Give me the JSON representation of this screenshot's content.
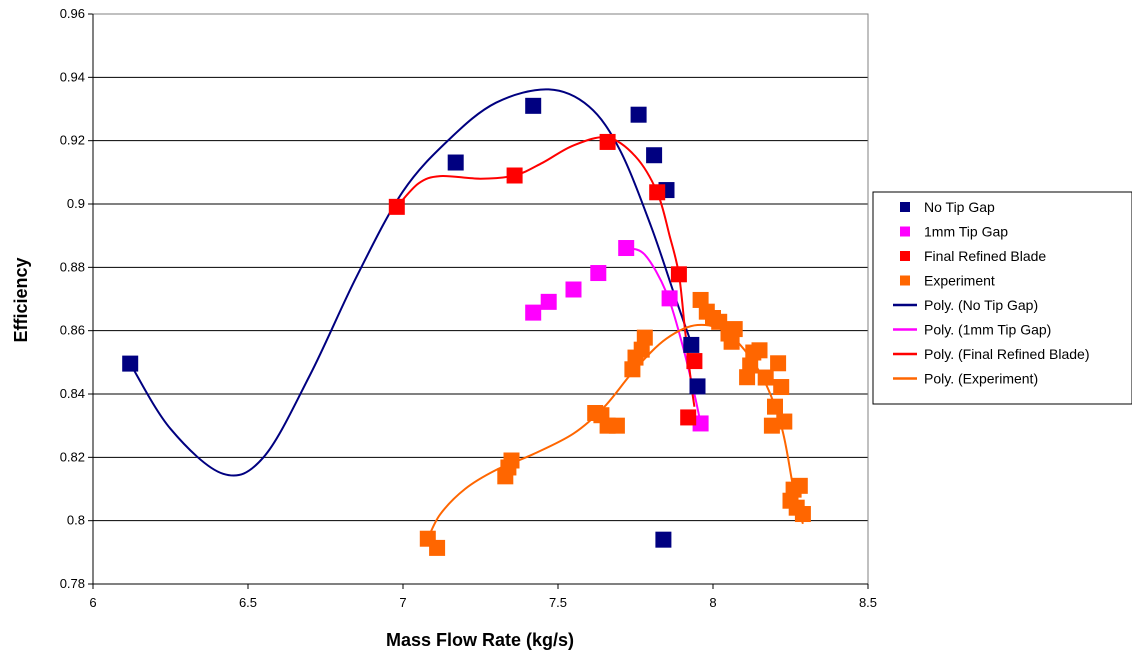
{
  "chart_data": {
    "type": "scatter",
    "title": "",
    "xlabel": "Mass Flow Rate (kg/s)",
    "ylabel": "Efficiency",
    "xlim": [
      6,
      8.5
    ],
    "ylim": [
      0.78,
      0.96
    ],
    "x_ticks": [
      "6",
      "6.5",
      "7",
      "7.5",
      "8",
      "8.5"
    ],
    "y_ticks": [
      "0.78",
      "0.8",
      "0.82",
      "0.84",
      "0.86",
      "0.88",
      "0.9",
      "0.92",
      "0.94",
      "0.96"
    ],
    "grid": "horizontal",
    "legend_position": "right",
    "series": [
      {
        "name": "No Tip Gap",
        "kind": "markers",
        "color": "#000080",
        "points": [
          [
            6.12,
            0.8496
          ],
          [
            7.17,
            0.9131
          ],
          [
            7.42,
            0.931
          ],
          [
            7.76,
            0.9282
          ],
          [
            7.81,
            0.9154
          ],
          [
            7.85,
            0.9044
          ],
          [
            7.93,
            0.8555
          ],
          [
            7.95,
            0.8424
          ],
          [
            7.84,
            0.794
          ]
        ]
      },
      {
        "name": "1mm Tip Gap",
        "kind": "markers",
        "color": "#FF00FF",
        "points": [
          [
            7.42,
            0.8657
          ],
          [
            7.47,
            0.8691
          ],
          [
            7.55,
            0.873
          ],
          [
            7.63,
            0.8782
          ],
          [
            7.72,
            0.8861
          ],
          [
            7.86,
            0.8702
          ],
          [
            7.96,
            0.8307
          ]
        ]
      },
      {
        "name": "Final Refined Blade",
        "kind": "markers",
        "color": "#FF0000",
        "points": [
          [
            6.98,
            0.8991
          ],
          [
            7.36,
            0.909
          ],
          [
            7.66,
            0.9196
          ],
          [
            7.82,
            0.9037
          ],
          [
            7.89,
            0.8778
          ],
          [
            7.94,
            0.8504
          ],
          [
            7.92,
            0.8326
          ]
        ]
      },
      {
        "name": "Experiment",
        "kind": "markers",
        "color": "#FF6600",
        "points": [
          [
            7.08,
            0.7943
          ],
          [
            7.11,
            0.7914
          ],
          [
            7.33,
            0.814
          ],
          [
            7.34,
            0.8168
          ],
          [
            7.35,
            0.819
          ],
          [
            7.62,
            0.834
          ],
          [
            7.64,
            0.8333
          ],
          [
            7.66,
            0.83
          ],
          [
            7.69,
            0.83
          ],
          [
            7.74,
            0.8478
          ],
          [
            7.75,
            0.8515
          ],
          [
            7.77,
            0.854
          ],
          [
            7.78,
            0.8578
          ],
          [
            7.96,
            0.8697
          ],
          [
            7.98,
            0.866
          ],
          [
            8.0,
            0.864
          ],
          [
            8.02,
            0.8628
          ],
          [
            8.05,
            0.8591
          ],
          [
            8.06,
            0.8565
          ],
          [
            8.07,
            0.8605
          ],
          [
            8.11,
            0.8453
          ],
          [
            8.12,
            0.849
          ],
          [
            8.13,
            0.8531
          ],
          [
            8.15,
            0.8538
          ],
          [
            8.17,
            0.8452
          ],
          [
            8.19,
            0.83
          ],
          [
            8.2,
            0.836
          ],
          [
            8.21,
            0.8497
          ],
          [
            8.22,
            0.8422
          ],
          [
            8.23,
            0.8313
          ],
          [
            8.25,
            0.8063
          ],
          [
            8.26,
            0.8098
          ],
          [
            8.27,
            0.8041
          ],
          [
            8.28,
            0.811
          ],
          [
            8.29,
            0.8021
          ]
        ]
      },
      {
        "name": "Poly. (No Tip Gap)",
        "kind": "line",
        "color": "#000080",
        "points": [
          [
            6.12,
            0.8496
          ],
          [
            6.25,
            0.829
          ],
          [
            6.42,
            0.8148
          ],
          [
            6.55,
            0.82
          ],
          [
            6.7,
            0.846
          ],
          [
            6.85,
            0.877
          ],
          [
            7.0,
            0.904
          ],
          [
            7.15,
            0.9205
          ],
          [
            7.3,
            0.932
          ],
          [
            7.47,
            0.9362
          ],
          [
            7.6,
            0.9308
          ],
          [
            7.7,
            0.917
          ],
          [
            7.8,
            0.893
          ],
          [
            7.88,
            0.87
          ],
          [
            7.93,
            0.856
          ]
        ]
      },
      {
        "name": "Poly. (1mm Tip Gap)",
        "kind": "line",
        "color": "#FF00FF",
        "points": [
          [
            7.72,
            0.8861
          ],
          [
            7.78,
            0.884
          ],
          [
            7.85,
            0.872
          ],
          [
            7.9,
            0.856
          ],
          [
            7.94,
            0.84
          ],
          [
            7.96,
            0.8307
          ]
        ]
      },
      {
        "name": "Poly. (Final Refined Blade)",
        "kind": "line",
        "color": "#FF0000",
        "points": [
          [
            6.98,
            0.8991
          ],
          [
            7.05,
            0.9065
          ],
          [
            7.12,
            0.9088
          ],
          [
            7.25,
            0.908
          ],
          [
            7.36,
            0.909
          ],
          [
            7.45,
            0.913
          ],
          [
            7.55,
            0.9185
          ],
          [
            7.66,
            0.921
          ],
          [
            7.75,
            0.915
          ],
          [
            7.82,
            0.9037
          ],
          [
            7.86,
            0.89
          ],
          [
            7.89,
            0.8778
          ],
          [
            7.91,
            0.86
          ],
          [
            7.93,
            0.843
          ],
          [
            7.94,
            0.836
          ]
        ]
      },
      {
        "name": "Poly. (Experiment)",
        "kind": "line",
        "color": "#FF6600",
        "points": [
          [
            7.08,
            0.7943
          ],
          [
            7.12,
            0.802
          ],
          [
            7.2,
            0.81
          ],
          [
            7.3,
            0.816
          ],
          [
            7.42,
            0.821
          ],
          [
            7.55,
            0.8275
          ],
          [
            7.65,
            0.836
          ],
          [
            7.75,
            0.848
          ],
          [
            7.85,
            0.8575
          ],
          [
            7.95,
            0.8618
          ],
          [
            8.05,
            0.859
          ],
          [
            8.15,
            0.847
          ],
          [
            8.22,
            0.83
          ],
          [
            8.26,
            0.81
          ],
          [
            8.29,
            0.799
          ]
        ]
      }
    ]
  }
}
